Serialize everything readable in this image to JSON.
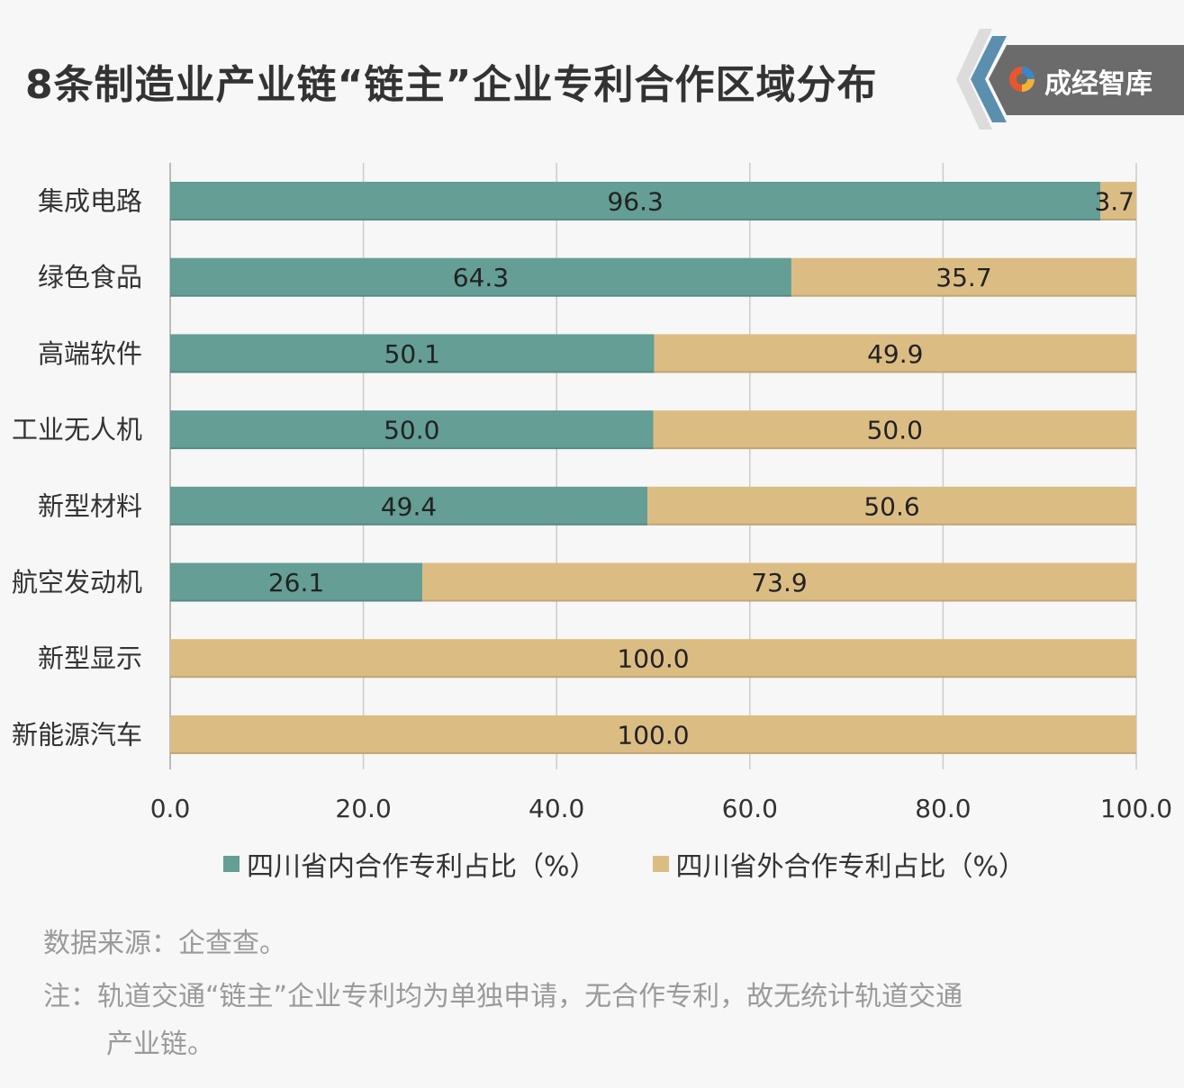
{
  "header": {
    "title": "8条制造业产业链“链主”企业专利合作区域分布",
    "brand": "成经智库"
  },
  "colors": {
    "inside": "#649e95",
    "outside": "#dbbd84",
    "grid": "#cccccc",
    "text": "#333333",
    "note": "#9a9a9a"
  },
  "chart_data": {
    "type": "bar",
    "orientation": "horizontal",
    "stacked": true,
    "categories": [
      "集成电路",
      "绿色食品",
      "高端软件",
      "工业无人机",
      "新型材料",
      "航空发动机",
      "新型显示",
      "新能源汽车"
    ],
    "series": [
      {
        "name": "四川省内合作专利占比（%）",
        "values": [
          96.3,
          64.3,
          50.1,
          50.0,
          49.4,
          26.1,
          0,
          0
        ],
        "labels": [
          "96.3",
          "64.3",
          "50.1",
          "50.0",
          "49.4",
          "26.1",
          "",
          ""
        ]
      },
      {
        "name": "四川省外合作专利占比（%）",
        "values": [
          3.7,
          35.7,
          49.9,
          50.0,
          50.6,
          73.9,
          100.0,
          100.0
        ],
        "labels": [
          "3.7",
          "35.7",
          "49.9",
          "50.0",
          "50.6",
          "73.9",
          "100.0",
          "100.0"
        ]
      }
    ],
    "xlim": [
      0,
      100
    ],
    "xticks": [
      "0.0",
      "20.0",
      "40.0",
      "60.0",
      "80.0",
      "100.0"
    ],
    "xtick_values": [
      0,
      20,
      40,
      60,
      80,
      100
    ],
    "grid": true,
    "legend_position": "bottom"
  },
  "notes": {
    "source": "数据来源：企查查。",
    "note_line1": "注：轨道交通“链主”企业专利均为单独申请，无合作专利，故无统计轨道交通",
    "note_line2": "产业链。"
  }
}
